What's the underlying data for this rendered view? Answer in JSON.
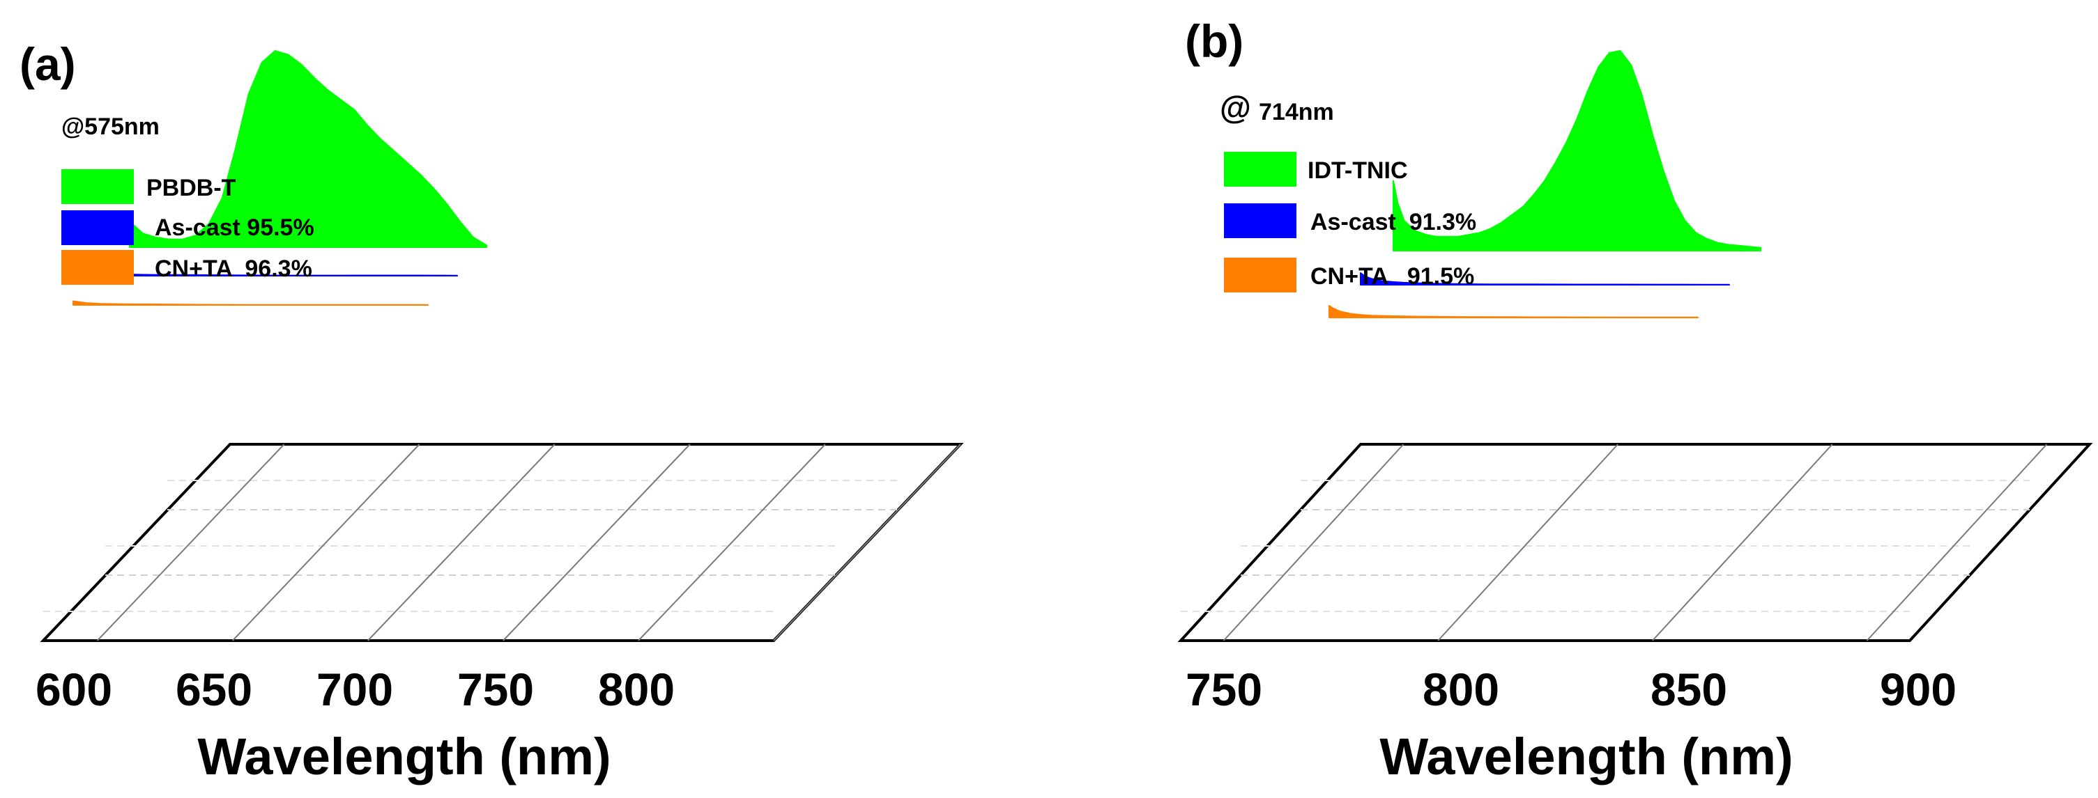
{
  "chart_data": [
    {
      "type": "area",
      "subtype": "3d-waterfall",
      "panel_label": "(a)",
      "annotation": "@575nm",
      "xlabel": "Wavelength (nm)",
      "ticks": [
        "600",
        "650",
        "700",
        "750",
        "800"
      ],
      "xlim": [
        580,
        850
      ],
      "legend_position": "top-left",
      "series": [
        {
          "name": "PBDB-T",
          "color": "#00ff00",
          "x": [
            580,
            590,
            600,
            610,
            620,
            630,
            640,
            650,
            660,
            670,
            680,
            690,
            700,
            710,
            720,
            730,
            740,
            750,
            760,
            770,
            780,
            790,
            800,
            810,
            820,
            830,
            840,
            850
          ],
          "y": [
            0.13,
            0.07,
            0.05,
            0.04,
            0.04,
            0.06,
            0.12,
            0.25,
            0.5,
            0.78,
            0.94,
            1.0,
            0.98,
            0.93,
            0.86,
            0.8,
            0.75,
            0.7,
            0.62,
            0.55,
            0.49,
            0.43,
            0.37,
            0.3,
            0.22,
            0.13,
            0.05,
            0.01
          ]
        },
        {
          "name": "As-cast 95.5%",
          "color": "#0000ff",
          "x": [
            580,
            585,
            590,
            600,
            610,
            620,
            630,
            640,
            650,
            660,
            670,
            680,
            690,
            700,
            720,
            740,
            760,
            780,
            800,
            820,
            840,
            850
          ],
          "y": [
            0.14,
            0.1,
            0.07,
            0.045,
            0.035,
            0.03,
            0.028,
            0.026,
            0.024,
            0.022,
            0.02,
            0.015,
            0.013,
            0.012,
            0.01,
            0.01,
            0.01,
            0.011,
            0.012,
            0.012,
            0.008,
            0.005
          ]
        },
        {
          "name": "CN+TA  96.3%",
          "color": "#ff8000",
          "x": [
            580,
            585,
            590,
            600,
            610,
            620,
            630,
            640,
            650,
            660,
            670,
            680,
            690,
            700,
            720,
            740,
            760,
            780,
            800,
            820,
            840,
            850
          ],
          "y": [
            0.13,
            0.1,
            0.07,
            0.045,
            0.035,
            0.03,
            0.027,
            0.025,
            0.022,
            0.02,
            0.015,
            0.012,
            0.01,
            0.009,
            0.008,
            0.007,
            0.007,
            0.006,
            0.006,
            0.005,
            0.004,
            0.003
          ]
        }
      ]
    },
    {
      "type": "area",
      "subtype": "3d-waterfall",
      "panel_label": "(b)",
      "annotation_at": "@",
      "annotation_value": "714nm",
      "xlabel": "Wavelength (nm)",
      "ticks": [
        "750",
        "800",
        "850",
        "900"
      ],
      "xlim": [
        740,
        910
      ],
      "legend_position": "top-left",
      "series": [
        {
          "name": "IDT-TNIC",
          "color": "#00ff00",
          "x": [
            740,
            742,
            745,
            750,
            755,
            760,
            765,
            770,
            775,
            780,
            785,
            790,
            795,
            800,
            805,
            810,
            815,
            820,
            825,
            830,
            835,
            840,
            845,
            850,
            855,
            860,
            865,
            870,
            875,
            880,
            885,
            890,
            895,
            900,
            905,
            910
          ],
          "y": [
            0.35,
            0.24,
            0.15,
            0.1,
            0.08,
            0.07,
            0.07,
            0.07,
            0.08,
            0.09,
            0.11,
            0.14,
            0.18,
            0.22,
            0.28,
            0.35,
            0.44,
            0.54,
            0.66,
            0.8,
            0.92,
            0.99,
            1.0,
            0.93,
            0.78,
            0.58,
            0.4,
            0.25,
            0.15,
            0.09,
            0.06,
            0.04,
            0.03,
            0.025,
            0.02,
            0.015
          ]
        },
        {
          "name": "As-cast  91.3%",
          "color": "#0000ff",
          "x": [
            740,
            742,
            745,
            750,
            755,
            760,
            770,
            780,
            790,
            800,
            820,
            840,
            860,
            880,
            900,
            910
          ],
          "y": [
            0.25,
            0.18,
            0.13,
            0.08,
            0.06,
            0.045,
            0.03,
            0.02,
            0.015,
            0.012,
            0.01,
            0.008,
            0.007,
            0.006,
            0.005,
            0.004
          ]
        },
        {
          "name": "CN+TA   91.5%",
          "color": "#ff8000",
          "x": [
            740,
            742,
            745,
            750,
            755,
            760,
            770,
            780,
            790,
            800,
            820,
            840,
            860,
            880,
            900,
            910
          ],
          "y": [
            0.25,
            0.19,
            0.13,
            0.08,
            0.055,
            0.04,
            0.03,
            0.022,
            0.017,
            0.013,
            0.01,
            0.008,
            0.006,
            0.005,
            0.004,
            0.003
          ]
        }
      ]
    }
  ]
}
